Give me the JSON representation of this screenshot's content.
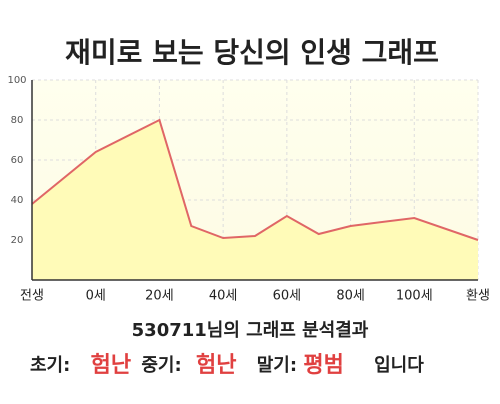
{
  "chart_data": {
    "type": "area",
    "title": "재미로 보는 당신의 인생 그래프",
    "x": [
      -20,
      0,
      20,
      30,
      40,
      50,
      60,
      70,
      80,
      100,
      120
    ],
    "values": [
      38,
      64,
      80,
      27,
      21,
      22,
      32,
      23,
      27,
      31,
      20
    ],
    "color": "#e06666",
    "fill": "#fffbb8",
    "xlim": [
      -20,
      120
    ],
    "xticks": [
      {
        "value": -20,
        "label": "전생"
      },
      {
        "value": 0,
        "label": "0세"
      },
      {
        "value": 20,
        "label": "20세"
      },
      {
        "value": 40,
        "label": "40세"
      },
      {
        "value": 60,
        "label": "60세"
      },
      {
        "value": 80,
        "label": "80세"
      },
      {
        "value": 100,
        "label": "100세"
      },
      {
        "value": 120,
        "label": "환생"
      }
    ],
    "ylim": [
      0,
      100
    ],
    "yticks": [
      20,
      40,
      60,
      80,
      100
    ],
    "grid": true
  },
  "result": {
    "heading": "530711님의 그래프 분석결과",
    "items": [
      {
        "label": "초기:",
        "value": "험난"
      },
      {
        "label": "중기:",
        "value": "험난"
      },
      {
        "label": "말기:",
        "value": "평범"
      }
    ],
    "suffix": "입니다"
  }
}
